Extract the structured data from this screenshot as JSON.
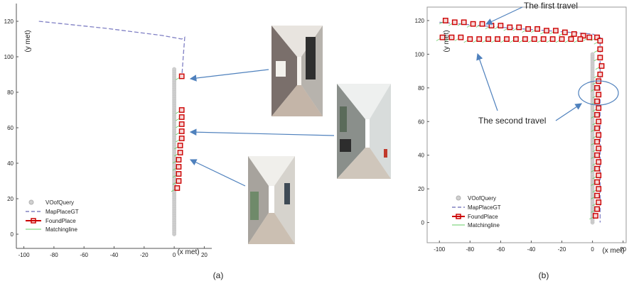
{
  "chart_data": [
    {
      "type": "line",
      "panel_label": "(a)",
      "xlabel": "(x met)",
      "ylabel": "(y met)",
      "xlim": [
        -105,
        25
      ],
      "ylim": [
        -8,
        130
      ],
      "xticks": [
        -100,
        -80,
        -60,
        -40,
        -20,
        0,
        20
      ],
      "yticks": [
        0,
        20,
        40,
        60,
        80,
        100,
        120
      ],
      "legend_position": "bottom-left",
      "legend": [
        "VOofQuery",
        "MapPlaceGT",
        "FoundPlace",
        "Matchingline"
      ],
      "series": [
        {
          "name": "VOofQuery",
          "style": "gray-circles",
          "x": [
            0,
            0
          ],
          "y": [
            0,
            93
          ]
        },
        {
          "name": "MapPlaceGT",
          "style": "dashed",
          "x": [
            -90,
            -45,
            -8,
            5,
            7,
            6,
            5
          ],
          "y": [
            120,
            116,
            112,
            110,
            111,
            100,
            88
          ]
        },
        {
          "name": "FoundPlace",
          "style": "red-squares",
          "points": [
            [
              5,
              89
            ],
            [
              5,
              70
            ],
            [
              5,
              66
            ],
            [
              5,
              62
            ],
            [
              5,
              58
            ],
            [
              5,
              54
            ],
            [
              4,
              50
            ],
            [
              4,
              46
            ],
            [
              3,
              42
            ],
            [
              3,
              38
            ],
            [
              3,
              34
            ],
            [
              3,
              30
            ],
            [
              2,
              26
            ]
          ]
        }
      ],
      "photos": 3
    },
    {
      "type": "line",
      "panel_label": "(b)",
      "xlabel": "(x met)",
      "ylabel": "(y met)",
      "xlim": [
        -108,
        22
      ],
      "ylim": [
        -12,
        128
      ],
      "xticks": [
        -100,
        -80,
        -60,
        -40,
        -20,
        0,
        20
      ],
      "yticks": [
        0,
        20,
        40,
        60,
        80,
        100,
        120
      ],
      "legend_position": "bottom-left",
      "legend": [
        "VOofQuery",
        "MapPlaceGT",
        "FoundPlace",
        "Matchingline"
      ],
      "annotations": [
        "The first travel",
        "The second travel"
      ],
      "series": [
        {
          "name": "VOofQuery",
          "style": "gray-circles",
          "x": [
            0,
            0
          ],
          "y": [
            0,
            100
          ]
        },
        {
          "name": "MapPlaceGT",
          "style": "dashed",
          "x": [
            -100,
            -60,
            0,
            5,
            5
          ],
          "y": [
            119,
            116,
            112,
            110,
            0
          ]
        },
        {
          "name": "FoundPlace",
          "style": "red-squares",
          "points": [
            [
              -96,
              120
            ],
            [
              -90,
              119
            ],
            [
              -84,
              119
            ],
            [
              -78,
              118
            ],
            [
              -72,
              118
            ],
            [
              -66,
              117
            ],
            [
              -60,
              117
            ],
            [
              -54,
              116
            ],
            [
              -48,
              116
            ],
            [
              -42,
              115
            ],
            [
              -36,
              115
            ],
            [
              -30,
              114
            ],
            [
              -24,
              114
            ],
            [
              -18,
              113
            ],
            [
              -12,
              112
            ],
            [
              -6,
              111
            ],
            [
              -2,
              110
            ],
            [
              3,
              110
            ],
            [
              -98,
              110
            ],
            [
              -92,
              110
            ],
            [
              -86,
              110
            ],
            [
              -80,
              109
            ],
            [
              -74,
              109
            ],
            [
              -68,
              109
            ],
            [
              -62,
              109
            ],
            [
              -56,
              109
            ],
            [
              -50,
              109
            ],
            [
              -44,
              109
            ],
            [
              -38,
              109
            ],
            [
              -32,
              109
            ],
            [
              -26,
              109
            ],
            [
              -20,
              109
            ],
            [
              -14,
              109
            ],
            [
              -8,
              109
            ],
            [
              5,
              108
            ],
            [
              5,
              103
            ],
            [
              5,
              98
            ],
            [
              6,
              93
            ],
            [
              5,
              88
            ],
            [
              4,
              84
            ],
            [
              3,
              80
            ],
            [
              4,
              76
            ],
            [
              3,
              72
            ],
            [
              4,
              68
            ],
            [
              3,
              64
            ],
            [
              4,
              60
            ],
            [
              3,
              56
            ],
            [
              4,
              52
            ],
            [
              3,
              48
            ],
            [
              4,
              44
            ],
            [
              3,
              40
            ],
            [
              4,
              36
            ],
            [
              3,
              32
            ],
            [
              4,
              28
            ],
            [
              3,
              24
            ],
            [
              4,
              20
            ],
            [
              3,
              16
            ],
            [
              4,
              12
            ],
            [
              3,
              8
            ],
            [
              2,
              4
            ]
          ]
        }
      ]
    }
  ]
}
